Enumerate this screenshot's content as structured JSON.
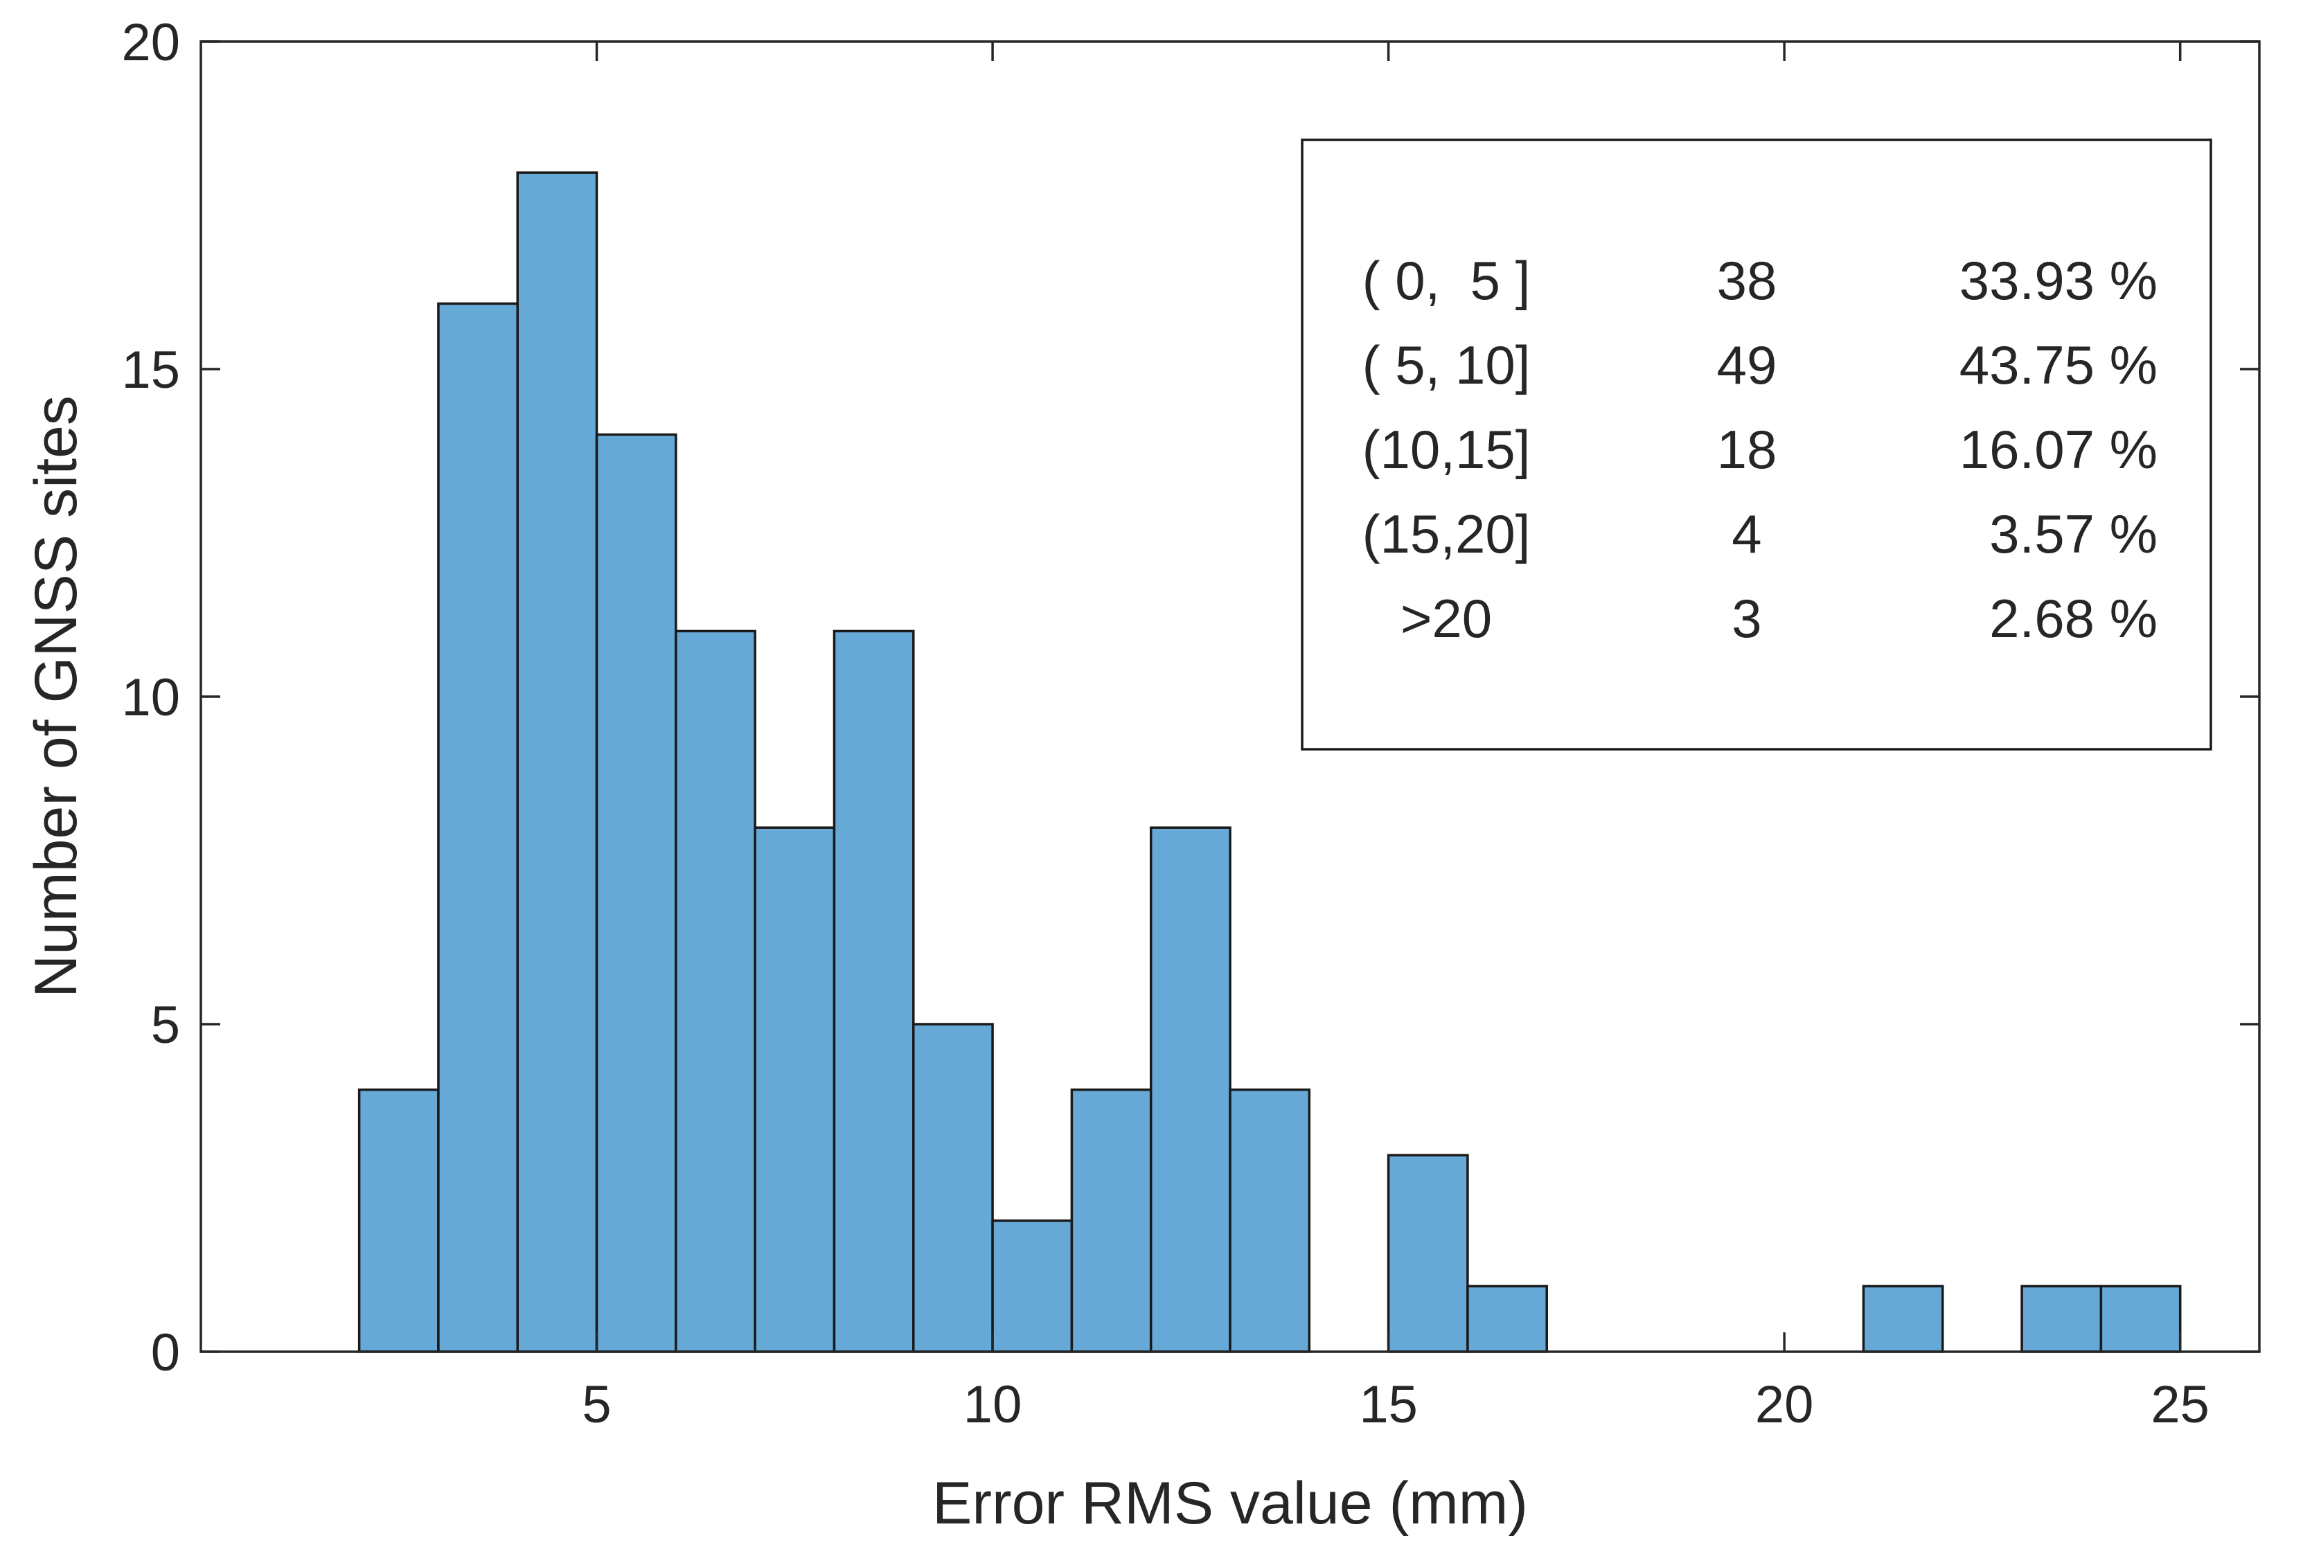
{
  "chart_data": {
    "type": "bar",
    "subtype": "histogram",
    "bin_width": 1,
    "bins": [
      {
        "start": 2,
        "end": 3,
        "count": 4
      },
      {
        "start": 3,
        "end": 4,
        "count": 16
      },
      {
        "start": 4,
        "end": 5,
        "count": 18
      },
      {
        "start": 5,
        "end": 6,
        "count": 14
      },
      {
        "start": 6,
        "end": 7,
        "count": 11
      },
      {
        "start": 7,
        "end": 8,
        "count": 8
      },
      {
        "start": 8,
        "end": 9,
        "count": 11
      },
      {
        "start": 9,
        "end": 10,
        "count": 5
      },
      {
        "start": 10,
        "end": 11,
        "count": 2
      },
      {
        "start": 11,
        "end": 12,
        "count": 4
      },
      {
        "start": 12,
        "end": 13,
        "count": 8
      },
      {
        "start": 13,
        "end": 14,
        "count": 4
      },
      {
        "start": 15,
        "end": 16,
        "count": 3
      },
      {
        "start": 16,
        "end": 17,
        "count": 1
      },
      {
        "start": 21,
        "end": 22,
        "count": 1
      },
      {
        "start": 23,
        "end": 24,
        "count": 1
      },
      {
        "start": 24,
        "end": 25,
        "count": 1
      }
    ],
    "xlabel": "Error RMS value (mm)",
    "ylabel": "Number of GNSS sites",
    "xlim": [
      0,
      26
    ],
    "ylim": [
      0,
      20
    ],
    "xticks": [
      5,
      10,
      15,
      20,
      25
    ],
    "yticks": [
      0,
      5,
      10,
      15,
      20
    ],
    "grid": false,
    "bar_color": "#66a9d7",
    "legend_table": {
      "position": "top-right",
      "rows": [
        {
          "range": "( 0,  5 ]",
          "count": "38",
          "percent": "33.93 %"
        },
        {
          "range": "( 5, 10]",
          "count": "49",
          "percent": "43.75 %"
        },
        {
          "range": "(10,15]",
          "count": "18",
          "percent": "16.07 %"
        },
        {
          "range": "(15,20]",
          "count": "4",
          "percent": "3.57 %"
        },
        {
          "range": ">20",
          "count": "3",
          "percent": "2.68 %"
        }
      ]
    }
  }
}
